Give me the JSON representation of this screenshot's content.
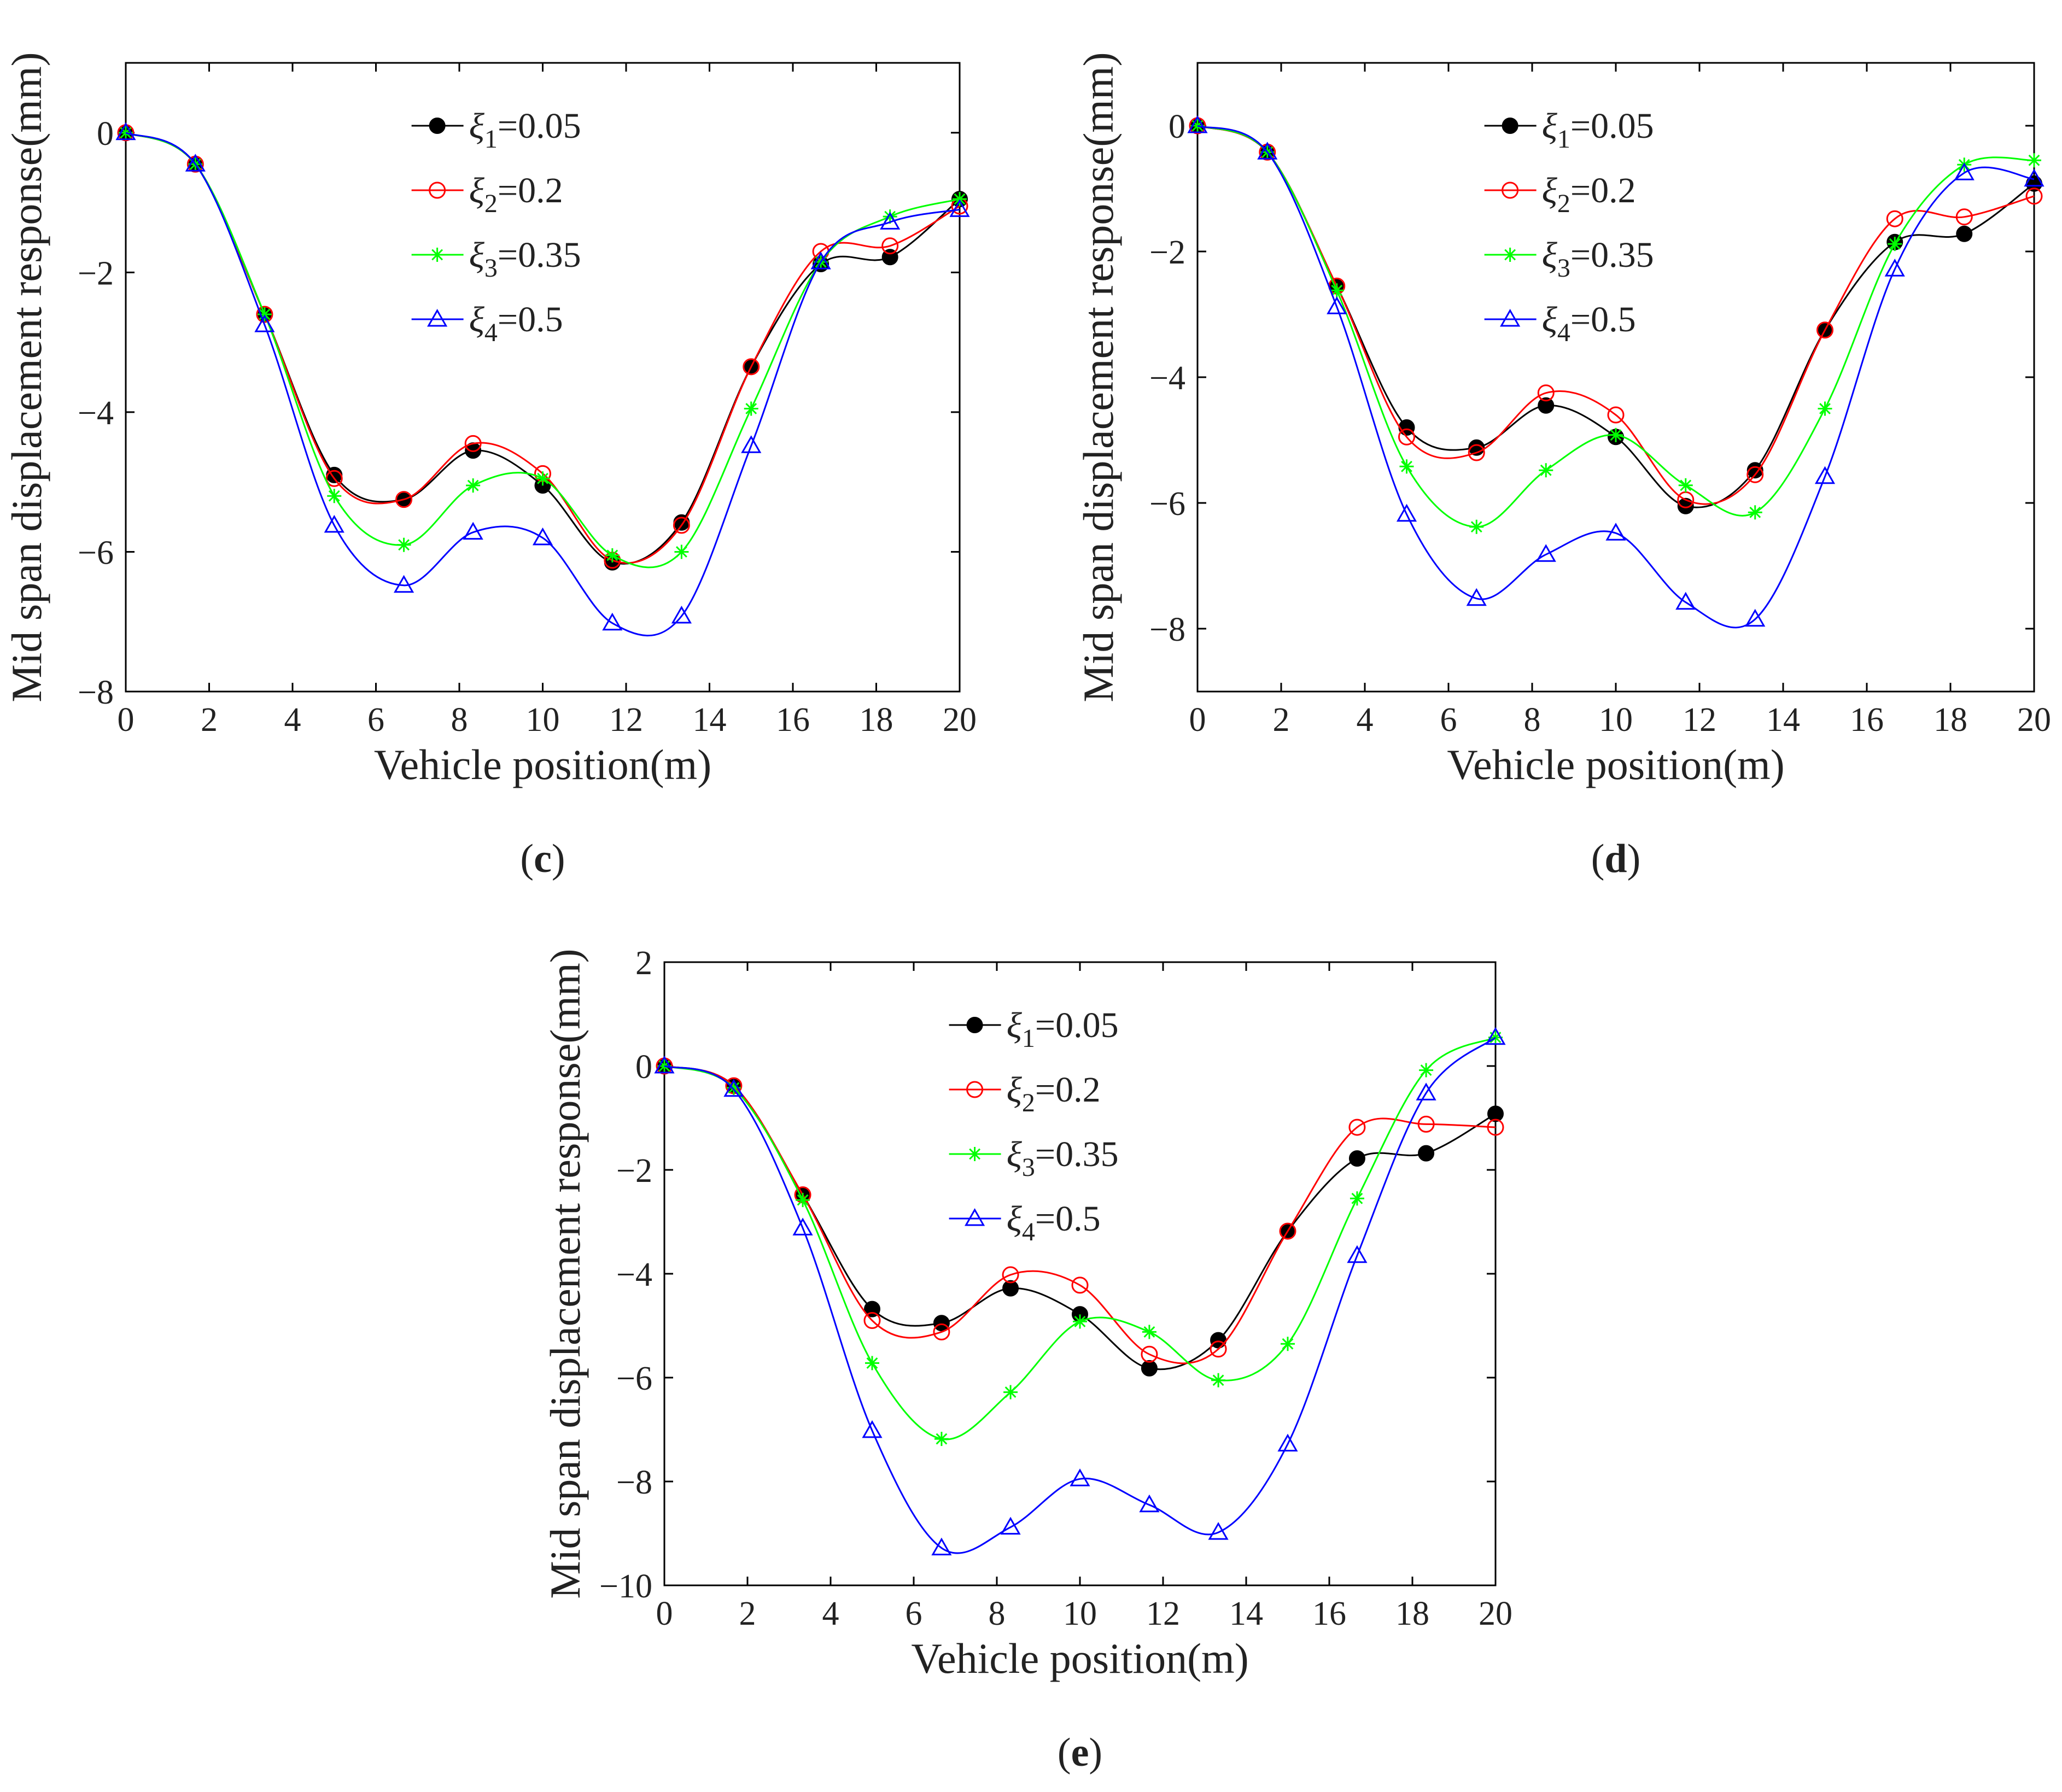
{
  "figure": {
    "background": "#ffffff",
    "axis_color": "#000000"
  },
  "legend_entries": [
    {
      "prefix": "ξ",
      "sub": "1",
      "value": "=0.05",
      "color": "#000000",
      "marker": "filled-circle"
    },
    {
      "prefix": "ξ",
      "sub": "2",
      "value": "=0.2",
      "color": "#ff0000",
      "marker": "open-circle"
    },
    {
      "prefix": "ξ",
      "sub": "3",
      "value": "=0.35",
      "color": "#00ff00",
      "marker": "asterisk"
    },
    {
      "prefix": "ξ",
      "sub": "4",
      "value": "=0.5",
      "color": "#0000ff",
      "marker": "open-triangle"
    }
  ],
  "chart_data": [
    {
      "type": "line",
      "panel_label": "c",
      "xlabel": "Vehicle position(m)",
      "ylabel": "Mid span displacement response(mm)",
      "xlim": [
        0,
        20
      ],
      "ylim": [
        -8,
        1
      ],
      "xticks": [
        0,
        2,
        4,
        6,
        8,
        10,
        12,
        14,
        16,
        18,
        20
      ],
      "yticks": [
        0,
        -2,
        -4,
        -6,
        -8
      ],
      "legend_position": "top-center",
      "x": [
        0,
        1.67,
        3.33,
        5.0,
        6.67,
        8.33,
        10.0,
        11.67,
        13.33,
        15.0,
        16.67,
        18.33,
        20.0
      ],
      "series": [
        {
          "name": "ξ1=0.05",
          "values": [
            0,
            -0.45,
            -2.6,
            -4.9,
            -5.25,
            -4.55,
            -5.05,
            -6.15,
            -5.58,
            -3.35,
            -1.88,
            -1.78,
            -0.95
          ]
        },
        {
          "name": "ξ2=0.2",
          "values": [
            0,
            -0.45,
            -2.6,
            -4.95,
            -5.25,
            -4.45,
            -4.88,
            -6.12,
            -5.62,
            -3.35,
            -1.7,
            -1.62,
            -1.05
          ]
        },
        {
          "name": "ξ3=0.35",
          "values": [
            0,
            -0.45,
            -2.6,
            -5.2,
            -5.9,
            -5.05,
            -4.95,
            -6.05,
            -6.0,
            -3.95,
            -1.85,
            -1.2,
            -0.95
          ]
        },
        {
          "name": "ξ4=0.5",
          "values": [
            0,
            -0.45,
            -2.75,
            -5.62,
            -6.48,
            -5.72,
            -5.8,
            -7.02,
            -6.92,
            -4.48,
            -1.85,
            -1.28,
            -1.1
          ]
        }
      ]
    },
    {
      "type": "line",
      "panel_label": "d",
      "xlabel": "Vehicle position(m)",
      "ylabel": "Mid span displacement response(mm)",
      "xlim": [
        0,
        20
      ],
      "ylim": [
        -9,
        1
      ],
      "xticks": [
        0,
        2,
        4,
        6,
        8,
        10,
        12,
        14,
        16,
        18,
        20
      ],
      "yticks": [
        0,
        -2,
        -4,
        -6,
        -8
      ],
      "legend_position": "top-center",
      "x": [
        0,
        1.67,
        3.33,
        5.0,
        6.67,
        8.33,
        10.0,
        11.67,
        13.33,
        15.0,
        16.67,
        18.33,
        20.0
      ],
      "series": [
        {
          "name": "ξ1=0.05",
          "values": [
            0,
            -0.42,
            -2.55,
            -4.8,
            -5.12,
            -4.45,
            -4.95,
            -6.05,
            -5.48,
            -3.25,
            -1.85,
            -1.72,
            -0.92
          ]
        },
        {
          "name": "ξ2=0.2",
          "values": [
            0,
            -0.42,
            -2.55,
            -4.95,
            -5.2,
            -4.25,
            -4.6,
            -5.95,
            -5.55,
            -3.25,
            -1.48,
            -1.45,
            -1.12
          ]
        },
        {
          "name": "ξ3=0.35",
          "values": [
            0,
            -0.42,
            -2.62,
            -5.42,
            -6.38,
            -5.48,
            -4.92,
            -5.72,
            -6.15,
            -4.5,
            -1.88,
            -0.62,
            -0.55
          ]
        },
        {
          "name": "ξ4=0.5",
          "values": [
            0,
            -0.42,
            -2.88,
            -6.18,
            -7.52,
            -6.82,
            -6.48,
            -7.58,
            -7.85,
            -5.58,
            -2.28,
            -0.75,
            -0.85
          ]
        }
      ]
    },
    {
      "type": "line",
      "panel_label": "e",
      "xlabel": "Vehicle position(m)",
      "ylabel": "Mid span displacement response(mm)",
      "xlim": [
        0,
        20
      ],
      "ylim": [
        -10,
        2
      ],
      "xticks": [
        0,
        2,
        4,
        6,
        8,
        10,
        12,
        14,
        16,
        18,
        20
      ],
      "yticks": [
        2,
        0,
        -2,
        -4,
        -6,
        -8,
        -10
      ],
      "legend_position": "top-center",
      "x": [
        0,
        1.67,
        3.33,
        5.0,
        6.67,
        8.33,
        10.0,
        11.67,
        13.33,
        15.0,
        16.67,
        18.33,
        20.0
      ],
      "series": [
        {
          "name": "ξ1=0.05",
          "values": [
            0,
            -0.38,
            -2.48,
            -4.68,
            -4.95,
            -4.28,
            -4.78,
            -5.82,
            -5.28,
            -3.18,
            -1.78,
            -1.68,
            -0.92
          ]
        },
        {
          "name": "ξ2=0.2",
          "values": [
            0,
            -0.38,
            -2.48,
            -4.9,
            -5.12,
            -4.02,
            -4.22,
            -5.55,
            -5.45,
            -3.18,
            -1.18,
            -1.12,
            -1.18
          ]
        },
        {
          "name": "ξ3=0.35",
          "values": [
            0,
            -0.42,
            -2.58,
            -5.72,
            -7.18,
            -6.28,
            -4.92,
            -5.12,
            -6.05,
            -5.35,
            -2.55,
            -0.08,
            0.55
          ]
        },
        {
          "name": "ξ4=0.5",
          "values": [
            0,
            -0.45,
            -3.12,
            -7.02,
            -9.28,
            -8.88,
            -7.95,
            -8.45,
            -8.98,
            -7.28,
            -3.65,
            -0.52,
            0.55
          ]
        }
      ]
    }
  ]
}
